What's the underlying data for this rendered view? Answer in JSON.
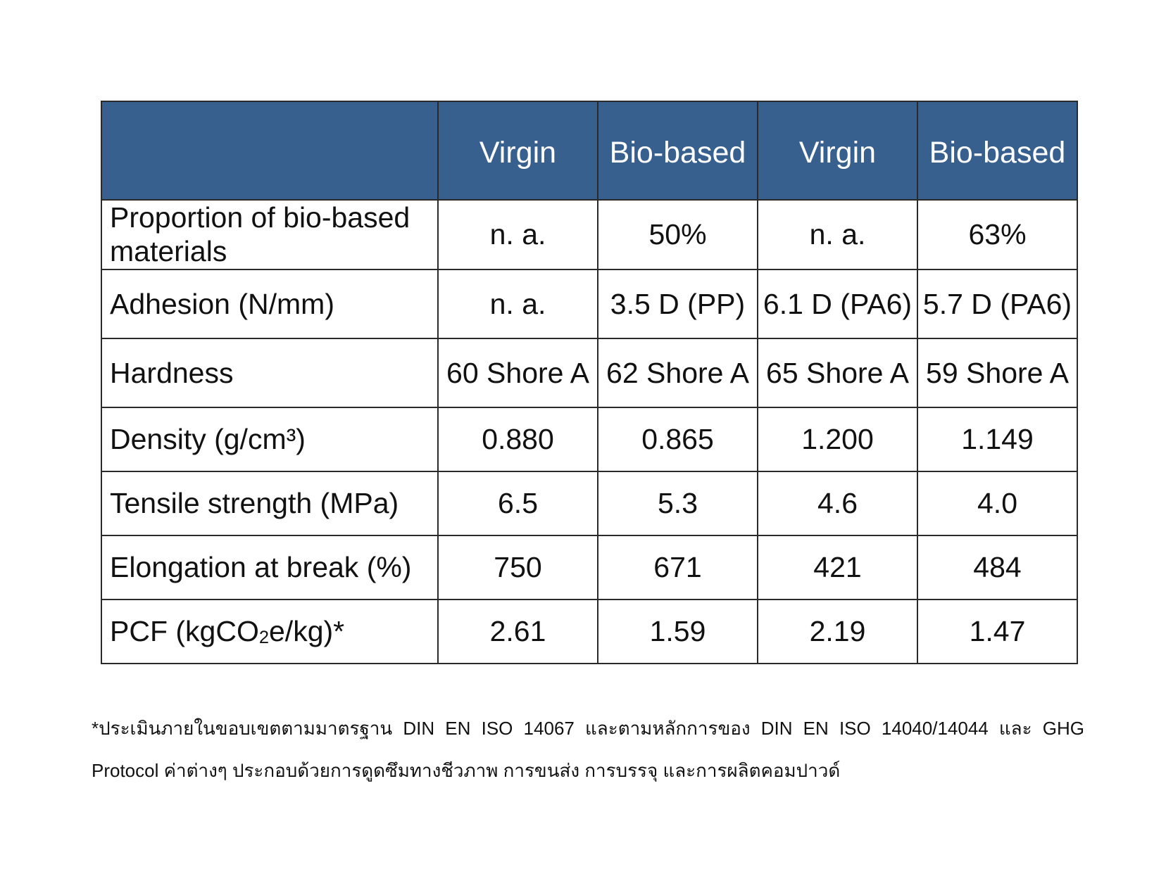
{
  "table": {
    "headers": [
      "",
      "Virgin",
      "Bio-based",
      "Virgin",
      "Bio-based"
    ],
    "rows": [
      {
        "label": "Proportion of bio-based materials",
        "values": [
          "n. a.",
          "50%",
          "n. a.",
          "63%"
        ]
      },
      {
        "label": "Adhesion (N/mm)",
        "values": [
          "n. a.",
          "3.5 D (PP)",
          "6.1 D (PA6)",
          "5.7 D (PA6)"
        ]
      },
      {
        "label": "Hardness",
        "values": [
          "60 Shore A",
          "62 Shore A",
          "65 Shore A",
          "59 Shore A"
        ]
      },
      {
        "label": "Density (g/cm³)",
        "values": [
          "0.880",
          "0.865",
          "1.200",
          "1.149"
        ]
      },
      {
        "label": "Tensile strength (MPa)",
        "values": [
          "6.5",
          "5.3",
          "4.6",
          "4.0"
        ]
      },
      {
        "label": "Elongation at break (%)",
        "values": [
          "750",
          "671",
          "421",
          "484"
        ]
      },
      {
        "label_prefix": "PCF (kgCO",
        "label_sub": "2",
        "label_suffix": "e/kg)*",
        "values": [
          "2.61",
          "1.59",
          "2.19",
          "1.47"
        ]
      }
    ]
  },
  "footnote": "*ประเมินภายในขอบเขตตามมาตรฐาน DIN EN ISO 14067 และตามหลักการของ DIN EN ISO 14040/14044 และ GHG Protocol ค่าต่างๆ ประกอบด้วยการดูดซึมทางชีวภาพ การขนส่ง การบรรจุ และการผลิตคอมปาวด์",
  "colors": {
    "header_background": "#37608f",
    "header_text": "#ffffff",
    "border": "#2a2a2a"
  }
}
